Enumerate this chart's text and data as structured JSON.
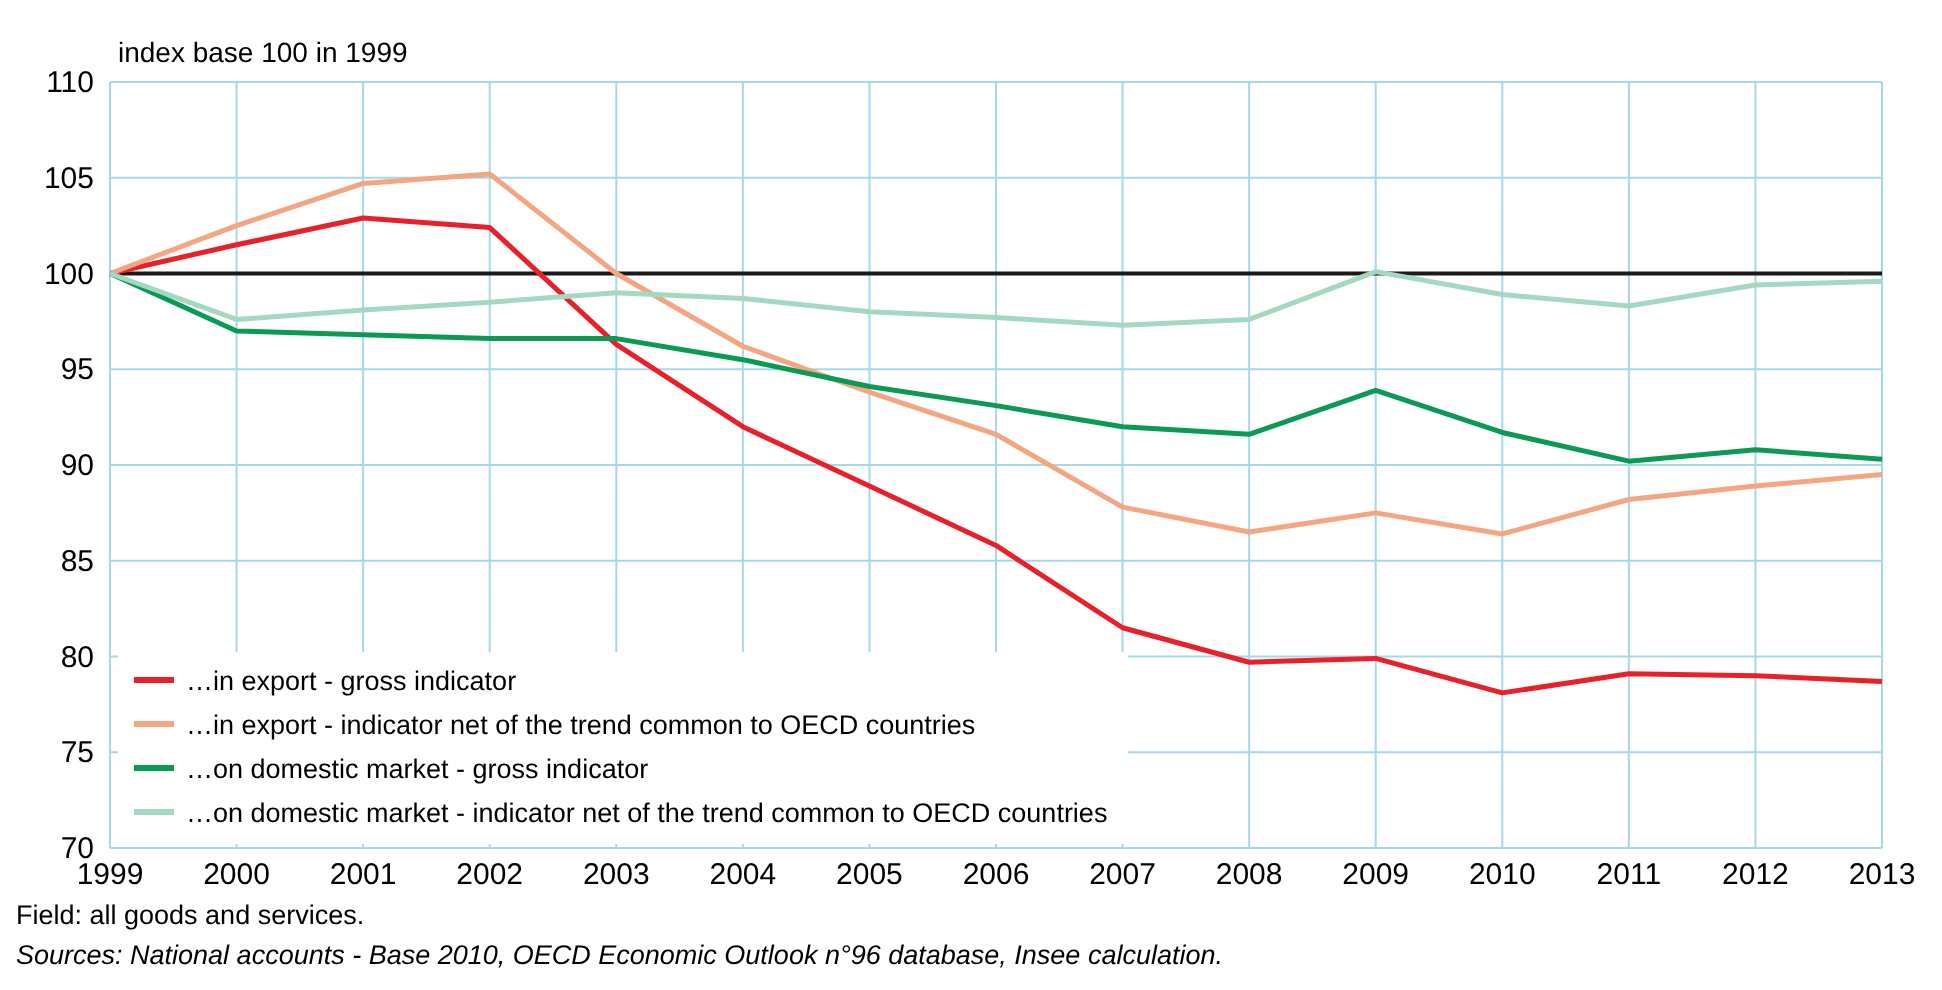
{
  "chart_data": {
    "type": "line",
    "ylabel": "index base 100 in 1999",
    "x": [
      1999,
      2000,
      2001,
      2002,
      2003,
      2004,
      2005,
      2006,
      2007,
      2008,
      2009,
      2010,
      2011,
      2012,
      2013
    ],
    "xlim": [
      1999,
      2013
    ],
    "xticks": [
      1999,
      2000,
      2001,
      2002,
      2003,
      2004,
      2005,
      2006,
      2007,
      2008,
      2009,
      2010,
      2011,
      2012,
      2013
    ],
    "ylim": [
      70,
      110
    ],
    "yticks": [
      70,
      75,
      80,
      85,
      90,
      95,
      100,
      105,
      110
    ],
    "grid": true,
    "legend": "bottom left",
    "marker": "none",
    "line_style": "solid",
    "ref_lines": [
      {
        "axis": "y",
        "value": 100,
        "color": "#1a1a1a"
      }
    ],
    "series": [
      {
        "name": "…in export - gross indicator",
        "color": "#e8202a",
        "values": [
          100,
          101.5,
          102.9,
          102.4,
          96.3,
          92.0,
          88.9,
          85.8,
          81.5,
          79.7,
          79.9,
          78.1,
          79.1,
          79.0,
          78.7
        ]
      },
      {
        "name": "…in export - indicator net of the trend common to OECD countries",
        "color": "#f4a582",
        "values": [
          100,
          102.5,
          104.7,
          105.2,
          100,
          96.2,
          93.8,
          91.6,
          87.8,
          86.5,
          87.5,
          86.4,
          88.2,
          88.9,
          89.5
        ]
      },
      {
        "name": "…on domestic market - gross indicator",
        "color": "#0a9a55",
        "values": [
          100,
          97.0,
          96.8,
          96.6,
          96.6,
          95.5,
          94.1,
          93.1,
          92.0,
          91.6,
          93.9,
          91.7,
          90.2,
          90.8,
          90.3
        ]
      },
      {
        "name": "…on domestic market - indicator net of the trend common to OECD countries",
        "color": "#a3d9c0",
        "values": [
          100,
          97.6,
          98.1,
          98.5,
          99.0,
          98.7,
          98.0,
          97.7,
          97.3,
          97.6,
          100.1,
          98.9,
          98.3,
          99.4,
          99.6
        ]
      }
    ],
    "annotations": [
      "Field: all goods and services.",
      "Sources: National accounts - Base 2010, OECD Economic Outlook n°96 database, Insee calculation."
    ]
  }
}
